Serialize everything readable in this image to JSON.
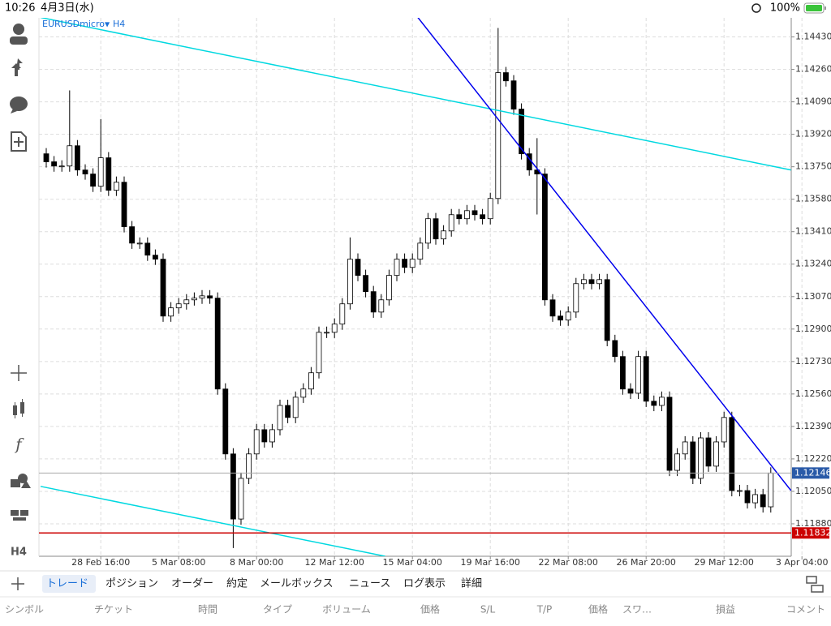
{
  "status_bar": {
    "time": "10:26",
    "date": "4月3日(水)",
    "battery": "100%"
  },
  "chart_header": {
    "symbol": "EURUSDmicro",
    "timeframe": "H4"
  },
  "toolbar": {
    "timeframe": "H4"
  },
  "chart_data": {
    "type": "candlestick",
    "categories": [
      null,
      null,
      null,
      null,
      null,
      null,
      null,
      "28 Feb 16:00",
      null,
      null,
      null,
      null,
      null,
      null,
      null,
      null,
      null,
      "5 Mar 08:00",
      null,
      null,
      null,
      null,
      null,
      null,
      null,
      null,
      null,
      "8 Mar 00:00",
      null,
      null,
      null,
      null,
      null,
      null,
      null,
      null,
      null,
      "12 Mar 12:00",
      null,
      null,
      null,
      null,
      null,
      null,
      null,
      null,
      null,
      "15 Mar 04:00",
      null,
      null,
      null,
      null,
      null,
      null,
      null,
      null,
      null,
      "19 Mar 16:00",
      null,
      null,
      null,
      null,
      null,
      null,
      null,
      null,
      null,
      "22 Mar 08:00",
      null,
      null,
      null,
      null,
      null,
      null,
      null,
      null,
      null,
      "26 Mar 20:00",
      null,
      null,
      null,
      null,
      null,
      null,
      null,
      null,
      null,
      "29 Mar 12:00",
      null,
      null,
      null,
      null,
      null,
      null,
      null,
      null,
      null,
      "3 Apr 04:00"
    ],
    "open": [
      1.13818,
      1.13776,
      1.13754,
      1.13754,
      1.1386,
      1.13733,
      1.13712,
      1.13648,
      1.13797,
      1.13627,
      1.13669,
      1.13436,
      1.1335,
      1.1335,
      1.13287,
      1.13266,
      1.12968,
      1.13011,
      1.13032,
      1.13053,
      1.13062,
      1.13074,
      1.13062,
      1.12586,
      1.12246,
      1.11905,
      1.12118,
      1.12246,
      1.12373,
      1.12309,
      1.12373,
      1.125,
      1.12437,
      1.12543,
      1.12586,
      1.12671,
      1.12883,
      1.12883,
      1.12926,
      1.13032,
      1.13266,
      1.13181,
      1.13096,
      1.12989,
      1.13053,
      1.13181,
      1.13266,
      1.13223,
      1.13266,
      1.1335,
      1.13478,
      1.13372,
      1.13414,
      1.13499,
      1.13478,
      1.1352,
      1.13499,
      1.13478,
      1.13584,
      1.14243,
      1.142,
      1.14052,
      1.13818,
      1.13733,
      1.13712,
      1.13053,
      1.12968,
      1.12947,
      1.12989,
      1.13138,
      1.13159,
      1.13138,
      1.13159,
      1.1284,
      1.12756,
      1.12586,
      1.12564,
      1.12756,
      1.12522,
      1.125,
      1.12543,
      1.1216,
      1.12246,
      1.12309,
      1.12118,
      1.1233,
      1.12182,
      1.12309,
      1.12437,
      1.12054,
      1.12054,
      1.1199,
      1.12033,
      1.11969,
      null,
      null,
      null,
      null
    ],
    "high": [
      1.13848,
      1.13806,
      1.13784,
      1.1415,
      1.1389,
      1.13763,
      1.13742,
      1.14,
      1.13827,
      1.13699,
      1.13699,
      1.13466,
      1.1338,
      1.1338,
      1.13317,
      1.13296,
      1.13041,
      1.13062,
      1.13083,
      1.13092,
      1.13104,
      1.13104,
      1.13092,
      1.12616,
      1.12276,
      1.12148,
      1.12276,
      1.12403,
      1.12403,
      1.12403,
      1.1253,
      1.1253,
      1.12573,
      1.12616,
      1.12701,
      1.12913,
      1.12913,
      1.12956,
      1.13062,
      1.1338,
      1.13296,
      1.13211,
      1.13126,
      1.13083,
      1.13211,
      1.13296,
      1.13296,
      1.13296,
      1.1338,
      1.13508,
      1.13508,
      1.13444,
      1.13529,
      1.13529,
      1.1355,
      1.1355,
      1.13529,
      1.13614,
      1.14477,
      1.14273,
      1.1423,
      1.14082,
      1.13848,
      1.139,
      1.13742,
      1.13083,
      1.12998,
      1.13019,
      1.13168,
      1.13189,
      1.13189,
      1.13189,
      1.13189,
      1.1287,
      1.12786,
      1.12616,
      1.12786,
      1.12786,
      1.12552,
      1.12573,
      1.12573,
      1.12276,
      1.12339,
      1.12339,
      1.1236,
      1.1236,
      1.12339,
      1.12467,
      1.12467,
      1.12084,
      1.12084,
      1.12063,
      1.12063,
      1.12176,
      null,
      null,
      null,
      null
    ],
    "low": [
      1.13746,
      1.13724,
      1.13724,
      1.13724,
      1.13703,
      1.13682,
      1.13618,
      1.13618,
      1.13597,
      1.13597,
      1.13406,
      1.1332,
      1.1332,
      1.13257,
      1.13236,
      1.12938,
      1.12938,
      1.12981,
      1.13002,
      1.13023,
      1.13032,
      1.13032,
      1.12556,
      1.12216,
      1.11753,
      1.11875,
      1.12088,
      1.12216,
      1.12279,
      1.12279,
      1.12343,
      1.12407,
      1.12407,
      1.12513,
      1.12556,
      1.12641,
      1.12853,
      1.12853,
      1.12896,
      1.13002,
      1.13151,
      1.13066,
      1.12959,
      1.12959,
      1.13023,
      1.13151,
      1.13193,
      1.13193,
      1.13236,
      1.1332,
      1.13342,
      1.13342,
      1.13384,
      1.13448,
      1.13448,
      1.13469,
      1.13448,
      1.13448,
      1.13554,
      1.1417,
      1.14022,
      1.13788,
      1.13703,
      1.135,
      1.13023,
      1.12938,
      1.12917,
      1.12917,
      1.12959,
      1.13108,
      1.13108,
      1.13108,
      1.1281,
      1.12726,
      1.12556,
      1.12534,
      1.12534,
      1.12492,
      1.1247,
      1.1247,
      1.1213,
      1.1213,
      1.12216,
      1.12088,
      1.12088,
      1.12152,
      1.12152,
      1.12279,
      1.12024,
      1.12024,
      1.1196,
      1.1196,
      1.11939,
      1.11939,
      null,
      null,
      null,
      null
    ],
    "close": [
      1.13776,
      1.13754,
      1.13754,
      1.1386,
      1.13733,
      1.13712,
      1.13648,
      1.13797,
      1.13627,
      1.13669,
      1.13436,
      1.1335,
      1.1335,
      1.13287,
      1.13266,
      1.12968,
      1.13011,
      1.13032,
      1.13053,
      1.13062,
      1.13074,
      1.13062,
      1.12586,
      1.12246,
      1.11905,
      1.12118,
      1.12246,
      1.12373,
      1.12309,
      1.12373,
      1.125,
      1.12437,
      1.12543,
      1.12586,
      1.12671,
      1.12883,
      1.12883,
      1.12926,
      1.13032,
      1.13266,
      1.13181,
      1.13096,
      1.12989,
      1.13053,
      1.13181,
      1.13266,
      1.13223,
      1.13266,
      1.1335,
      1.13478,
      1.13372,
      1.13414,
      1.13499,
      1.13478,
      1.1352,
      1.13499,
      1.13478,
      1.13584,
      1.14243,
      1.142,
      1.14052,
      1.13818,
      1.13733,
      1.13712,
      1.13053,
      1.12968,
      1.12947,
      1.12989,
      1.13138,
      1.13159,
      1.13138,
      1.13159,
      1.1284,
      1.12756,
      1.12586,
      1.12564,
      1.12756,
      1.12522,
      1.125,
      1.12543,
      1.1216,
      1.12246,
      1.12309,
      1.12118,
      1.1233,
      1.12182,
      1.12309,
      1.12437,
      1.12054,
      1.12054,
      1.1199,
      1.12033,
      1.11969,
      1.12146,
      null,
      null,
      null,
      null
    ],
    "up_color": "#ffffff",
    "down_color": "#000000",
    "ylim": [
      1.1171,
      1.1453
    ],
    "yticks": [
      {
        "value": 1.1443,
        "label": "1.14430"
      },
      {
        "value": 1.1426,
        "label": "1.14260"
      },
      {
        "value": 1.1409,
        "label": "1.14090"
      },
      {
        "value": 1.1392,
        "label": "1.13920"
      },
      {
        "value": 1.1375,
        "label": "1.13750"
      },
      {
        "value": 1.1358,
        "label": "1.13580"
      },
      {
        "value": 1.1341,
        "label": "1.13410"
      },
      {
        "value": 1.1324,
        "label": "1.13240"
      },
      {
        "value": 1.1307,
        "label": "1.13070"
      },
      {
        "value": 1.129,
        "label": "1.12900"
      },
      {
        "value": 1.1273,
        "label": "1.12730"
      },
      {
        "value": 1.1256,
        "label": "1.12560"
      },
      {
        "value": 1.1239,
        "label": "1.12390"
      },
      {
        "value": 1.1222,
        "label": "1.12220"
      },
      {
        "value": 1.1205,
        "label": "1.12050"
      },
      {
        "value": 1.1188,
        "label": "1.11880"
      }
    ],
    "grid": true,
    "lines": [
      {
        "color": "#00d8e0",
        "x": [
          -0.73,
          95.6
        ],
        "y": [
          1.14532,
          1.13733
        ]
      },
      {
        "color": "#00d8e0",
        "x": [
          -0.73,
          43.5
        ],
        "y": [
          1.12076,
          1.1171
        ]
      },
      {
        "color": "#0000ee",
        "x": [
          47.7,
          95.6
        ],
        "y": [
          1.14532,
          1.12054
        ]
      }
    ],
    "hlines": [
      {
        "value": 1.12146,
        "color": "#aaaaaa",
        "label_color": "#2a5aa8"
      },
      {
        "value": 1.11832,
        "color": "#cc0000",
        "label_color": "#cc0000"
      }
    ]
  },
  "tabs": [
    "トレード",
    "ポジション",
    "オーダー",
    "約定",
    "メールボックス",
    "ニュース",
    "ログ表示",
    "詳細"
  ],
  "columns": [
    "シンボル",
    "チケット",
    "時間",
    "タイプ",
    "ボリューム",
    "価格",
    "S/L",
    "T/P",
    "価格",
    "スワ…",
    "損益",
    "コメント"
  ]
}
